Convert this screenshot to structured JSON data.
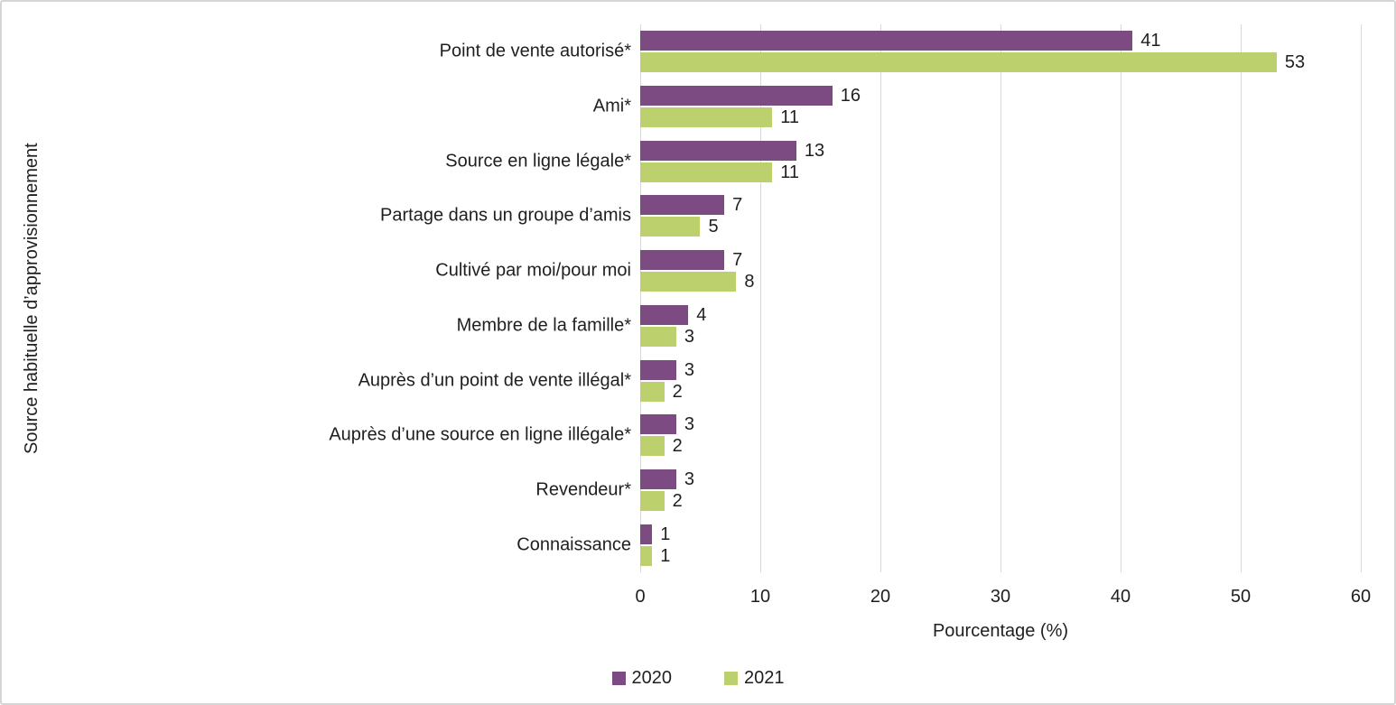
{
  "chart_data": {
    "type": "bar",
    "orientation": "horizontal",
    "title": "",
    "xlabel": "Pourcentage (%)",
    "ylabel": "Source habituelle d’approvisionnement",
    "xlim": [
      0,
      60
    ],
    "x_ticks": [
      0,
      10,
      20,
      30,
      40,
      50,
      60
    ],
    "grid": "vertical",
    "gridline_color": "#d9d9d9",
    "data_labels": true,
    "legend_position": "bottom",
    "categories": [
      "Point de vente autorisé*",
      "Ami*",
      "Source en ligne légale*",
      "Partage dans un groupe d’amis",
      "Cultivé par moi/pour moi",
      "Membre de la famille*",
      "Auprès d’un point de vente illégal*",
      "Auprès d’une source en ligne illégale*",
      "Revendeur*",
      "Connaissance"
    ],
    "series": [
      {
        "name": "2020",
        "color": "#7b4b82",
        "values": [
          41,
          16,
          13,
          7,
          7,
          4,
          3,
          3,
          3,
          1
        ]
      },
      {
        "name": "2021",
        "color": "#bcd16e",
        "values": [
          53,
          11,
          11,
          5,
          8,
          3,
          2,
          2,
          2,
          1
        ]
      }
    ]
  },
  "frame": {
    "background": "#ffffff",
    "border_color": "#d5d5d5"
  }
}
